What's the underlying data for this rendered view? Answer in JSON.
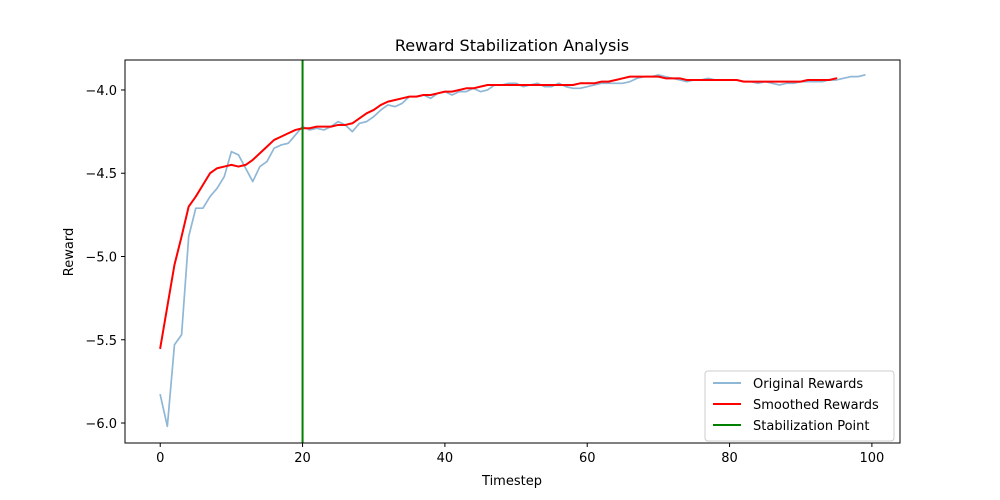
{
  "chart_data": {
    "type": "line",
    "title": "Reward Stabilization Analysis",
    "xlabel": "Timestep",
    "ylabel": "Reward",
    "xlim": [
      -4.95,
      103.95
    ],
    "ylim": [
      -6.12,
      -3.82
    ],
    "xticks": [
      0,
      20,
      40,
      60,
      80,
      100
    ],
    "xtick_labels": [
      "0",
      "20",
      "40",
      "60",
      "80",
      "100"
    ],
    "yticks": [
      -6.0,
      -5.5,
      -5.0,
      -4.5,
      -4.0
    ],
    "ytick_labels": [
      "−6.0",
      "−5.5",
      "−5.0",
      "−4.5",
      "−4.0"
    ],
    "grid": false,
    "legend_position": "lower right",
    "stabilization_point": 20,
    "series": [
      {
        "name": "Original Rewards",
        "color": "#8fb7d6",
        "x": [
          0,
          1,
          2,
          3,
          4,
          5,
          6,
          7,
          8,
          9,
          10,
          11,
          12,
          13,
          14,
          15,
          16,
          17,
          18,
          19,
          20,
          21,
          22,
          23,
          24,
          25,
          26,
          27,
          28,
          29,
          30,
          31,
          32,
          33,
          34,
          35,
          36,
          37,
          38,
          39,
          40,
          41,
          42,
          43,
          44,
          45,
          46,
          47,
          48,
          49,
          50,
          51,
          52,
          53,
          54,
          55,
          56,
          57,
          58,
          59,
          60,
          61,
          62,
          63,
          64,
          65,
          66,
          67,
          68,
          69,
          70,
          71,
          72,
          73,
          74,
          75,
          76,
          77,
          78,
          79,
          80,
          81,
          82,
          83,
          84,
          85,
          86,
          87,
          88,
          89,
          90,
          91,
          92,
          93,
          94,
          95,
          96,
          97,
          98,
          99
        ],
        "y": [
          -5.83,
          -6.02,
          -5.53,
          -5.47,
          -4.88,
          -4.71,
          -4.71,
          -4.64,
          -4.59,
          -4.52,
          -4.37,
          -4.39,
          -4.47,
          -4.55,
          -4.46,
          -4.43,
          -4.35,
          -4.33,
          -4.32,
          -4.27,
          -4.22,
          -4.24,
          -4.23,
          -4.24,
          -4.22,
          -4.19,
          -4.21,
          -4.25,
          -4.2,
          -4.19,
          -4.16,
          -4.12,
          -4.09,
          -4.1,
          -4.08,
          -4.04,
          -4.04,
          -4.03,
          -4.05,
          -4.02,
          -4.01,
          -4.03,
          -4.01,
          -4.01,
          -3.99,
          -4.01,
          -4.0,
          -3.97,
          -3.97,
          -3.96,
          -3.96,
          -3.98,
          -3.97,
          -3.96,
          -3.98,
          -3.98,
          -3.96,
          -3.98,
          -3.99,
          -3.99,
          -3.98,
          -3.97,
          -3.96,
          -3.96,
          -3.96,
          -3.96,
          -3.95,
          -3.93,
          -3.92,
          -3.92,
          -3.91,
          -3.92,
          -3.93,
          -3.94,
          -3.95,
          -3.94,
          -3.94,
          -3.93,
          -3.94,
          -3.94,
          -3.94,
          -3.94,
          -3.95,
          -3.95,
          -3.96,
          -3.95,
          -3.96,
          -3.97,
          -3.96,
          -3.96,
          -3.95,
          -3.95,
          -3.95,
          -3.95,
          -3.94,
          -3.94,
          -3.93,
          -3.92,
          -3.92,
          -3.91
        ]
      },
      {
        "name": "Smoothed Rewards",
        "color": "#ff0000",
        "x": [
          0,
          1,
          2,
          3,
          4,
          5,
          6,
          7,
          8,
          9,
          10,
          11,
          12,
          13,
          14,
          15,
          16,
          17,
          18,
          19,
          20,
          21,
          22,
          23,
          24,
          25,
          26,
          27,
          28,
          29,
          30,
          31,
          32,
          33,
          34,
          35,
          36,
          37,
          38,
          39,
          40,
          41,
          42,
          43,
          44,
          45,
          46,
          47,
          48,
          49,
          50,
          51,
          52,
          53,
          54,
          55,
          56,
          57,
          58,
          59,
          60,
          61,
          62,
          63,
          64,
          65,
          66,
          67,
          68,
          69,
          70,
          71,
          72,
          73,
          74,
          75,
          76,
          77,
          78,
          79,
          80,
          81,
          82,
          83,
          84,
          85,
          86,
          87,
          88,
          89,
          90,
          91,
          92,
          93,
          94,
          95
        ],
        "y": [
          -5.55,
          -5.3,
          -5.05,
          -4.88,
          -4.7,
          -4.64,
          -4.57,
          -4.5,
          -4.47,
          -4.46,
          -4.45,
          -4.46,
          -4.45,
          -4.42,
          -4.38,
          -4.34,
          -4.3,
          -4.28,
          -4.26,
          -4.24,
          -4.23,
          -4.23,
          -4.22,
          -4.22,
          -4.22,
          -4.21,
          -4.21,
          -4.2,
          -4.17,
          -4.14,
          -4.12,
          -4.09,
          -4.07,
          -4.06,
          -4.05,
          -4.04,
          -4.04,
          -4.03,
          -4.03,
          -4.02,
          -4.01,
          -4.01,
          -4.0,
          -3.99,
          -3.99,
          -3.98,
          -3.97,
          -3.97,
          -3.97,
          -3.97,
          -3.97,
          -3.97,
          -3.97,
          -3.97,
          -3.97,
          -3.97,
          -3.97,
          -3.97,
          -3.97,
          -3.96,
          -3.96,
          -3.96,
          -3.95,
          -3.95,
          -3.94,
          -3.93,
          -3.92,
          -3.92,
          -3.92,
          -3.92,
          -3.92,
          -3.93,
          -3.93,
          -3.93,
          -3.94,
          -3.94,
          -3.94,
          -3.94,
          -3.94,
          -3.94,
          -3.94,
          -3.94,
          -3.95,
          -3.95,
          -3.95,
          -3.95,
          -3.95,
          -3.95,
          -3.95,
          -3.95,
          -3.95,
          -3.94,
          -3.94,
          -3.94,
          -3.94,
          -3.93
        ]
      },
      {
        "name": "Stabilization Point",
        "color": "#008000",
        "type": "vline",
        "x": 20
      }
    ]
  }
}
